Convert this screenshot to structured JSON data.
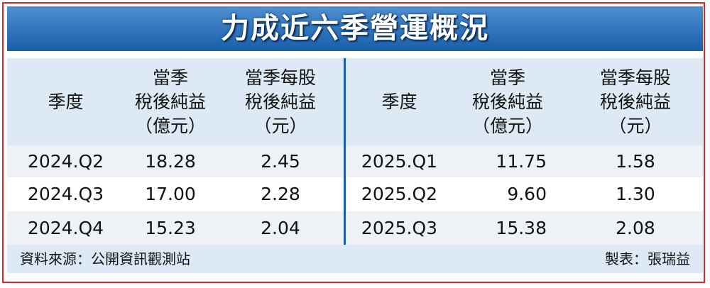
{
  "title": "力成近六季營運概況",
  "tables": [
    {
      "headers": [
        [
          "季度"
        ],
        [
          "當季",
          "稅後純益",
          "（億元）"
        ],
        [
          "當季每股",
          "稅後純益",
          "（元）"
        ]
      ],
      "rows": [
        [
          "2024.Q2",
          "18.28",
          "2.45"
        ],
        [
          "2024.Q3",
          "17.00",
          "2.28"
        ],
        [
          "2024.Q4",
          "15.23",
          "2.04"
        ]
      ]
    },
    {
      "headers": [
        [
          "季度"
        ],
        [
          "當季",
          "稅後純益",
          "（億元）"
        ],
        [
          "當季每股",
          "稅後純益",
          "（元）"
        ]
      ],
      "rows": [
        [
          "2025.Q1",
          "11.75",
          "1.58"
        ],
        [
          "2025.Q2",
          "9.60",
          "1.30"
        ],
        [
          "2025.Q3",
          "15.38",
          "2.08"
        ]
      ]
    }
  ],
  "source": "資料來源：公開資訊觀測站",
  "author": "製表：張瑞益"
}
